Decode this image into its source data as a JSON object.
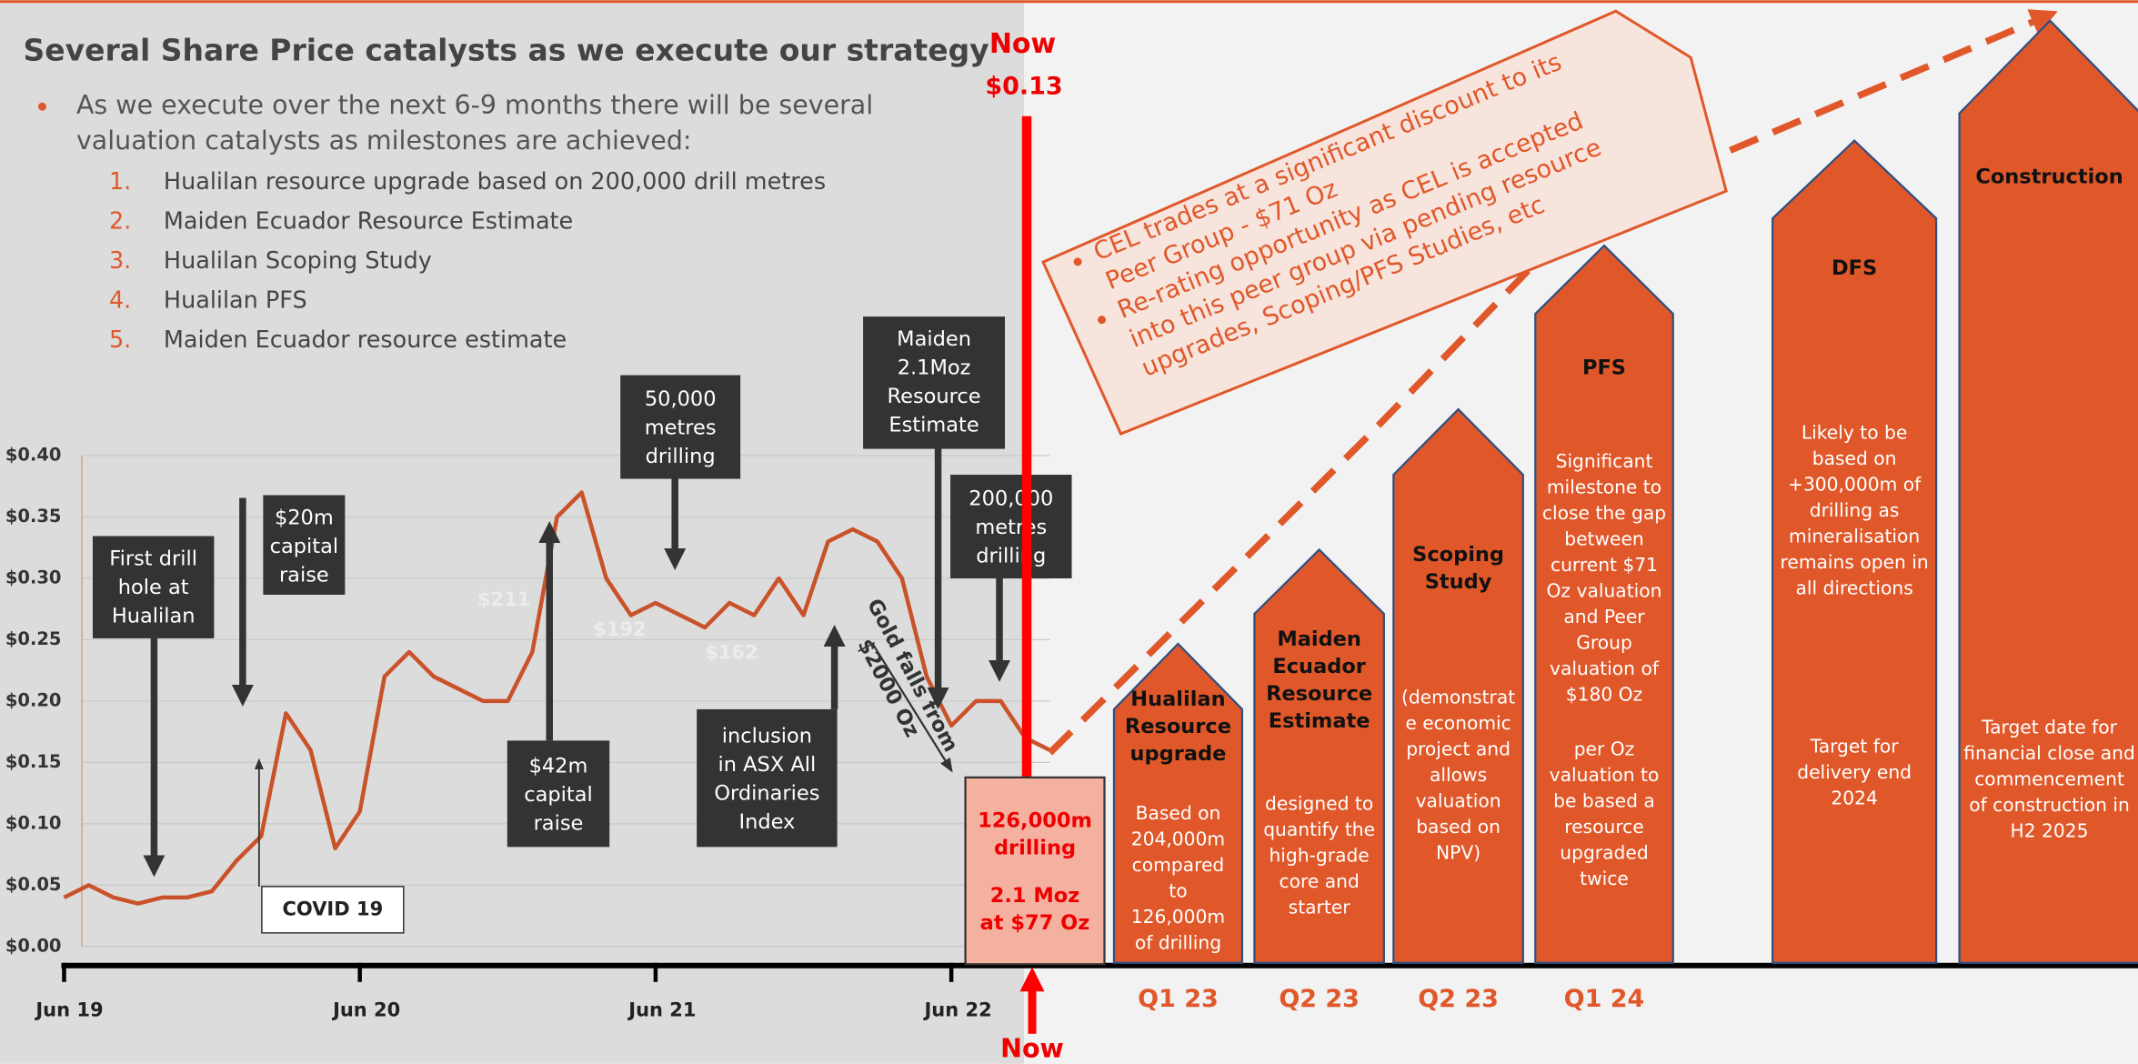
{
  "slide": {
    "title": "Several Share Price catalysts as we execute our strategy",
    "bullet": [
      "As we execute over the next 6-9 months there will be several",
      "valuation catalysts as milestones are achieved:"
    ],
    "items": [
      {
        "num": "1.",
        "text": "Hualilan resource upgrade based on 200,000 drill metres"
      },
      {
        "num": "2.",
        "text": "Maiden Ecuador Resource Estimate"
      },
      {
        "num": "3.",
        "text": "Hualilan Scoping Study"
      },
      {
        "num": "4.",
        "text": "Hualilan PFS"
      },
      {
        "num": "5.",
        "text": "Maiden Ecuador resource estimate"
      }
    ]
  },
  "now_top": "Now",
  "price_now": "$0.13",
  "now_bottom": "Now",
  "annotations": [
    {
      "lines": [
        "First drill",
        "hole at",
        "Hualilan"
      ]
    },
    {
      "lines": [
        "$20m",
        "capital",
        "raise"
      ]
    },
    {
      "lines": [
        "50,000",
        "metres",
        "drilling"
      ]
    },
    {
      "lines": [
        "Maiden",
        "2.1Moz",
        "Resource",
        "Estimate"
      ]
    },
    {
      "lines": [
        "200,000",
        "metres",
        "drilling"
      ]
    },
    {
      "lines": [
        "$42m",
        "capital",
        "raise"
      ]
    },
    {
      "lines": [
        "inclusion",
        "in ASX All",
        "Ordinaries",
        "Index"
      ]
    }
  ],
  "covid": "COVID 19",
  "gold_falls": [
    "Gold falls from",
    "$2000 Oz"
  ],
  "faint_labels": [
    "$211",
    "$192",
    "$162"
  ],
  "callout": [
    [
      "CEL trades at a significant discount to its",
      "Peer Group  - $71 Oz"
    ],
    [
      "Re-rating opportunity as CEL is accepted",
      "into this peer group via pending resource",
      "upgrades, Scoping/PFS Studies, etc"
    ]
  ],
  "box": {
    "drilling": [
      "126,000m",
      "drilling"
    ],
    "resource": [
      "2.1 Moz",
      "at $77 Oz"
    ]
  },
  "stages": [
    {
      "name": [
        "Hualilan",
        "Resource",
        "upgrade"
      ],
      "desc": [
        "Based on",
        "204,000m",
        "compared",
        "to",
        "126,000m",
        "of drilling"
      ],
      "quarter": "Q1 23"
    },
    {
      "name": [
        "Maiden",
        "Ecuador",
        "Resource",
        "Estimate"
      ],
      "desc": [
        "designed to",
        "quantify the",
        "high-grade",
        "core  and",
        "starter"
      ],
      "quarter": "Q2 23"
    },
    {
      "name": [
        "Scoping",
        "Study"
      ],
      "desc": [
        "(demonstrat",
        "e economic",
        "project and",
        "allows",
        "valuation",
        "based on",
        "NPV)"
      ],
      "quarter": "Q2 23"
    },
    {
      "name": [
        "PFS"
      ],
      "desc": [
        "Significant",
        "milestone to",
        "close the gap",
        "between",
        "current $71",
        "Oz valuation",
        "and Peer",
        "Group",
        "valuation of",
        "$180 Oz"
      ],
      "desc2": [
        "per Oz",
        "valuation to",
        "be based a",
        "resource",
        "upgraded",
        "twice"
      ],
      "quarter": "Q1 24"
    },
    {
      "name": [
        "DFS"
      ],
      "desc": [
        "Likely to be",
        "based on",
        "+300,000m of",
        "drilling as",
        "mineralisation",
        "remains open in",
        "all directions"
      ],
      "desc2": [
        "Target for",
        "delivery end",
        "2024"
      ]
    },
    {
      "name": [
        "Construction"
      ],
      "desc2": [
        "Target date for",
        "financial close and",
        "commencement",
        "of construction in",
        "H2 2025"
      ]
    }
  ],
  "chart_data": {
    "type": "line",
    "categories": [
      "Jun 19",
      null,
      null,
      null,
      null,
      null,
      null,
      null,
      null,
      null,
      null,
      null,
      "Jun 20",
      null,
      null,
      null,
      null,
      null,
      null,
      null,
      null,
      null,
      null,
      null,
      "Jun 21",
      null,
      null,
      null,
      null,
      null,
      null,
      null,
      null,
      null,
      null,
      null,
      "Jun 22",
      null,
      null,
      null,
      null
    ],
    "values": [
      0.04,
      0.05,
      0.04,
      0.035,
      0.04,
      0.04,
      0.045,
      0.07,
      0.09,
      0.19,
      0.16,
      0.08,
      0.11,
      0.22,
      0.24,
      0.22,
      0.21,
      0.2,
      0.2,
      0.24,
      0.35,
      0.37,
      0.3,
      0.27,
      0.28,
      0.27,
      0.26,
      0.28,
      0.27,
      0.3,
      0.27,
      0.33,
      0.34,
      0.33,
      0.3,
      0.22,
      0.18,
      0.2,
      0.2,
      0.17,
      0.16
    ],
    "color": "#c9522a",
    "ylim": [
      0,
      0.4
    ],
    "yticks": [
      {
        "value": 0,
        "label": "$0.00"
      },
      {
        "value": 0.05,
        "label": "$0.05"
      },
      {
        "value": 0.1,
        "label": "$0.10"
      },
      {
        "value": 0.15,
        "label": "$0.15"
      },
      {
        "value": 0.2,
        "label": "$0.20"
      },
      {
        "value": 0.25,
        "label": "$0.25"
      },
      {
        "value": 0.3,
        "label": "$0.30"
      },
      {
        "value": 0.35,
        "label": "$0.35"
      },
      {
        "value": 0.4,
        "label": "$0.40"
      }
    ],
    "grid": true
  }
}
